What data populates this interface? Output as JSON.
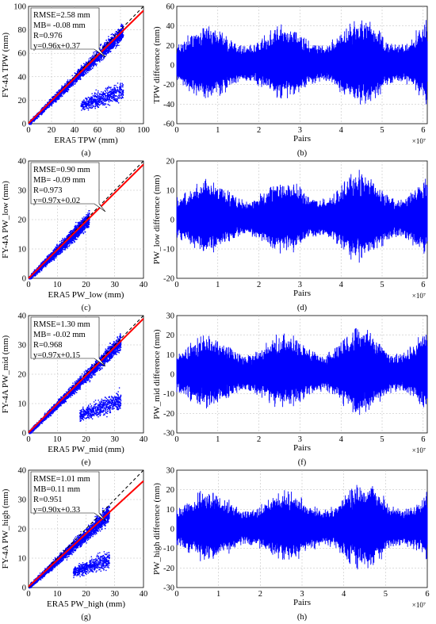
{
  "panels": [
    {
      "caption": "(a)",
      "xlabel": "ERA5 TPW (mm)",
      "ylabel": "FY-4A TPW (mm)",
      "lim": 100,
      "ticks": [
        "0",
        "20",
        "40",
        "60",
        "80",
        "100"
      ],
      "stats": {
        "rmse": "RMSE=2.58 mm",
        "mb": "MB= -0.08 mm",
        "r": "R=0.976",
        "fit": "y=0.96x+0.37"
      },
      "slope": 0.96,
      "intercept": 0.37,
      "xmax_data": 82,
      "lower_cloud": true
    },
    {
      "caption": "(c)",
      "xlabel": "ERA5 PW_low (mm)",
      "ylabel": "FY-4A PW_low (mm)",
      "lim": 40,
      "ticks": [
        "0",
        "10",
        "20",
        "30",
        "40"
      ],
      "stats": {
        "rmse": "RMSE=0.90 mm",
        "mb": "MB= -0.09 mm",
        "r": "R=0.973",
        "fit": "y=0.97x+0.02"
      },
      "slope": 0.97,
      "intercept": 0.02,
      "xmax_data": 21,
      "lower_cloud": false
    },
    {
      "caption": "(e)",
      "xlabel": "ERA5 PW_mid (mm)",
      "ylabel": "FY-4A PW_mid (mm)",
      "lim": 40,
      "ticks": [
        "0",
        "10",
        "20",
        "30",
        "40"
      ],
      "stats": {
        "rmse": "RMSE=1.30 mm",
        "mb": "MB= -0.02 mm",
        "r": "R=0.968",
        "fit": "y=0.97x+0.15"
      },
      "slope": 0.97,
      "intercept": 0.15,
      "xmax_data": 32,
      "lower_cloud": true
    },
    {
      "caption": "(g)",
      "xlabel": "ERA5 PW_high (mm)",
      "ylabel": "FY-4A PW_high (mm)",
      "lim": 40,
      "ticks": [
        "0",
        "10",
        "20",
        "30",
        "40"
      ],
      "stats": {
        "rmse": "RMSE=1.01 mm",
        "mb": "MB=0.11 mm",
        "r": "R=0.951",
        "fit": "y=0.90x+0.33"
      },
      "slope": 0.9,
      "intercept": 0.33,
      "xmax_data": 28,
      "lower_cloud": true
    }
  ],
  "diff_panels": [
    {
      "caption": "(b)",
      "ylabel": "TPW difference (mm)",
      "xlabel": "Pairs",
      "exponent": "×10⁷",
      "ylim": [
        -60,
        60
      ],
      "yticks": [
        "-60",
        "-40",
        "-20",
        "0",
        "20",
        "40",
        "60"
      ],
      "xmax": 6.1,
      "xticks": [
        "0",
        "1",
        "2",
        "3",
        "4",
        "5",
        "6"
      ],
      "amp": 1.0
    },
    {
      "caption": "(d)",
      "ylabel": "PW_low difference (mm)",
      "xlabel": "Pairs",
      "exponent": "×10⁷",
      "ylim": [
        -20,
        20
      ],
      "yticks": [
        "-20",
        "-10",
        "0",
        "10",
        "20"
      ],
      "xmax": 6.1,
      "xticks": [
        "0",
        "1",
        "2",
        "3",
        "4",
        "5",
        "6"
      ],
      "amp": 0.33
    },
    {
      "caption": "(f)",
      "ylabel": "PW_mid difference (mm)",
      "xlabel": "Pairs",
      "exponent": "×10⁷",
      "ylim": [
        -30,
        30
      ],
      "yticks": [
        "-30",
        "-20",
        "-10",
        "0",
        "10",
        "20",
        "30"
      ],
      "xmax": 6.1,
      "xticks": [
        "0",
        "1",
        "2",
        "3",
        "4",
        "5",
        "6"
      ],
      "amp": 0.5
    },
    {
      "caption": "(h)",
      "ylabel": "PW_high difference (mm)",
      "xlabel": "Pairs",
      "exponent": "×10⁷",
      "ylim": [
        -30,
        30
      ],
      "yticks": [
        "-30",
        "-20",
        "-10",
        "0",
        "10",
        "20",
        "30"
      ],
      "xmax": 6.0,
      "xticks": [
        "0",
        "1",
        "2",
        "3",
        "4",
        "5",
        "6"
      ],
      "amp": 0.48
    }
  ],
  "colors": {
    "scatter": "#0000ff",
    "fit_line": "#ff0000",
    "fit_text": "#ff0000",
    "diff": "#0000ff"
  },
  "chart_data": [
    {
      "type": "scatter",
      "title": "",
      "xlabel": "ERA5 TPW (mm)",
      "ylabel": "FY-4A TPW (mm)",
      "xlim": [
        0,
        100
      ],
      "ylim": [
        0,
        100
      ],
      "series": [
        {
          "name": "fit",
          "values": "y=0.96x+0.37"
        }
      ],
      "grid": true
    },
    {
      "type": "line",
      "xlabel": "Pairs",
      "ylabel": "TPW difference (mm)",
      "xlim": [
        0,
        6.1
      ],
      "ylim": [
        -60,
        60
      ],
      "grid": true
    },
    {
      "type": "scatter",
      "xlabel": "ERA5 PW_low (mm)",
      "ylabel": "FY-4A PW_low (mm)",
      "xlim": [
        0,
        40
      ],
      "ylim": [
        0,
        40
      ],
      "series": [
        {
          "name": "fit",
          "values": "y=0.97x+0.02"
        }
      ],
      "grid": true
    },
    {
      "type": "line",
      "xlabel": "Pairs",
      "ylabel": "PW_low difference (mm)",
      "xlim": [
        0,
        6.1
      ],
      "ylim": [
        -20,
        20
      ],
      "grid": true
    },
    {
      "type": "scatter",
      "xlabel": "ERA5 PW_mid (mm)",
      "ylabel": "FY-4A PW_mid (mm)",
      "xlim": [
        0,
        40
      ],
      "ylim": [
        0,
        40
      ],
      "series": [
        {
          "name": "fit",
          "values": "y=0.97x+0.15"
        }
      ],
      "grid": true
    },
    {
      "type": "line",
      "xlabel": "Pairs",
      "ylabel": "PW_mid difference (mm)",
      "xlim": [
        0,
        6.1
      ],
      "ylim": [
        -30,
        30
      ],
      "grid": true
    },
    {
      "type": "scatter",
      "xlabel": "ERA5 PW_high (mm)",
      "ylabel": "FY-4A PW_high (mm)",
      "xlim": [
        0,
        40
      ],
      "ylim": [
        0,
        40
      ],
      "series": [
        {
          "name": "fit",
          "values": "y=0.90x+0.33"
        }
      ],
      "grid": true
    },
    {
      "type": "line",
      "xlabel": "Pairs",
      "ylabel": "PW_high difference (mm)",
      "xlim": [
        0,
        6.0
      ],
      "ylim": [
        -30,
        30
      ],
      "grid": true
    }
  ]
}
